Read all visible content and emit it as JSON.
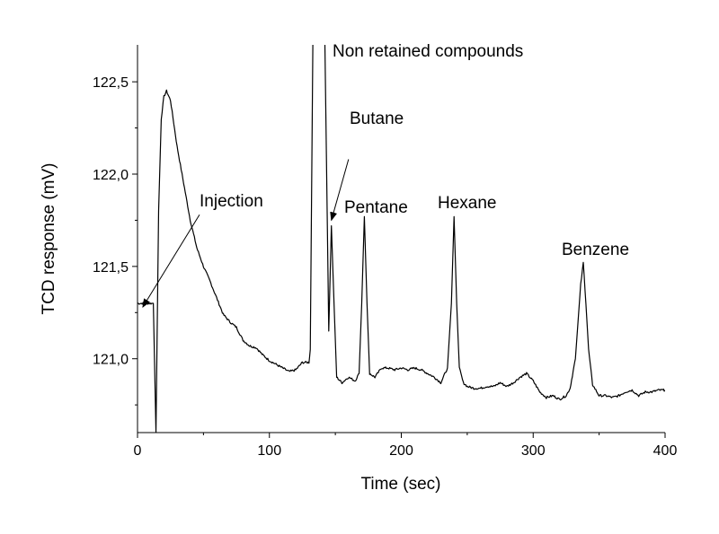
{
  "chart_data": {
    "type": "line",
    "title": "",
    "xlabel": "Time (sec)",
    "ylabel": "TCD response (mV)",
    "xlim": [
      0,
      400
    ],
    "ylim": [
      120.6,
      122.7
    ],
    "grid": false,
    "legend": "none",
    "line_color": "#000000",
    "x_ticks": [
      {
        "value": 0,
        "label": "0"
      },
      {
        "value": 100,
        "label": "100"
      },
      {
        "value": 200,
        "label": "200"
      },
      {
        "value": 300,
        "label": "300"
      },
      {
        "value": 400,
        "label": "400"
      }
    ],
    "y_ticks": [
      {
        "value": 121.0,
        "label": "121,0"
      },
      {
        "value": 121.5,
        "label": "121,5"
      },
      {
        "value": 122.0,
        "label": "122,0"
      },
      {
        "value": 122.5,
        "label": "122,5"
      }
    ],
    "series": [
      {
        "x": [
          0,
          12,
          14,
          16,
          18,
          20,
          22,
          25,
          30,
          35,
          40,
          45,
          50,
          55,
          60,
          65,
          70,
          75,
          80,
          85,
          90,
          95,
          100,
          105,
          110,
          115,
          120,
          125,
          130,
          131,
          133,
          135,
          140,
          142,
          145,
          147,
          149,
          151,
          155,
          160,
          165,
          168,
          170,
          172,
          174,
          176,
          180,
          185,
          190,
          195,
          200,
          205,
          210,
          215,
          220,
          225,
          230,
          235,
          238,
          240,
          242,
          244,
          247,
          250,
          255,
          260,
          265,
          270,
          275,
          280,
          285,
          290,
          295,
          300,
          305,
          310,
          315,
          320,
          325,
          328,
          332,
          336,
          338,
          340,
          342,
          345,
          350,
          355,
          360,
          365,
          370,
          375,
          380,
          385,
          390,
          395,
          400
        ],
        "y": [
          121.3,
          121.3,
          120.6,
          121.8,
          122.3,
          122.42,
          122.45,
          122.4,
          122.15,
          121.95,
          121.75,
          121.6,
          121.5,
          121.42,
          121.33,
          121.24,
          121.2,
          121.17,
          121.1,
          121.07,
          121.06,
          121.02,
          120.99,
          120.97,
          120.95,
          120.93,
          120.94,
          120.98,
          120.98,
          121.05,
          122.75,
          122.75,
          122.75,
          122.75,
          121.15,
          121.72,
          121.3,
          120.9,
          120.87,
          120.9,
          120.88,
          120.92,
          121.3,
          121.77,
          121.3,
          120.92,
          120.9,
          120.95,
          120.95,
          120.94,
          120.95,
          120.94,
          120.95,
          120.94,
          120.92,
          120.9,
          120.87,
          120.95,
          121.3,
          121.77,
          121.3,
          120.95,
          120.87,
          120.85,
          120.84,
          120.84,
          120.85,
          120.85,
          120.87,
          120.85,
          120.87,
          120.9,
          120.92,
          120.88,
          120.82,
          120.79,
          120.8,
          120.78,
          120.8,
          120.84,
          121.0,
          121.4,
          121.52,
          121.3,
          121.05,
          120.86,
          120.8,
          120.8,
          120.79,
          120.8,
          120.82,
          120.83,
          120.8,
          120.82,
          120.82,
          120.83,
          120.83
        ]
      }
    ],
    "annotations": [
      {
        "key": "injection",
        "text": "Injection",
        "arrow_from": [
          47,
          121.78
        ],
        "arrow_to": [
          4,
          121.28
        ]
      },
      {
        "key": "non-retained",
        "text": "Non retained compounds"
      },
      {
        "key": "butane",
        "text": "Butane",
        "arrow_from": [
          160,
          122.08
        ],
        "arrow_to": [
          147,
          121.75
        ]
      },
      {
        "key": "pentane",
        "text": "Pentane"
      },
      {
        "key": "hexane",
        "text": "Hexane"
      },
      {
        "key": "benzene",
        "text": "Benzene"
      }
    ]
  }
}
